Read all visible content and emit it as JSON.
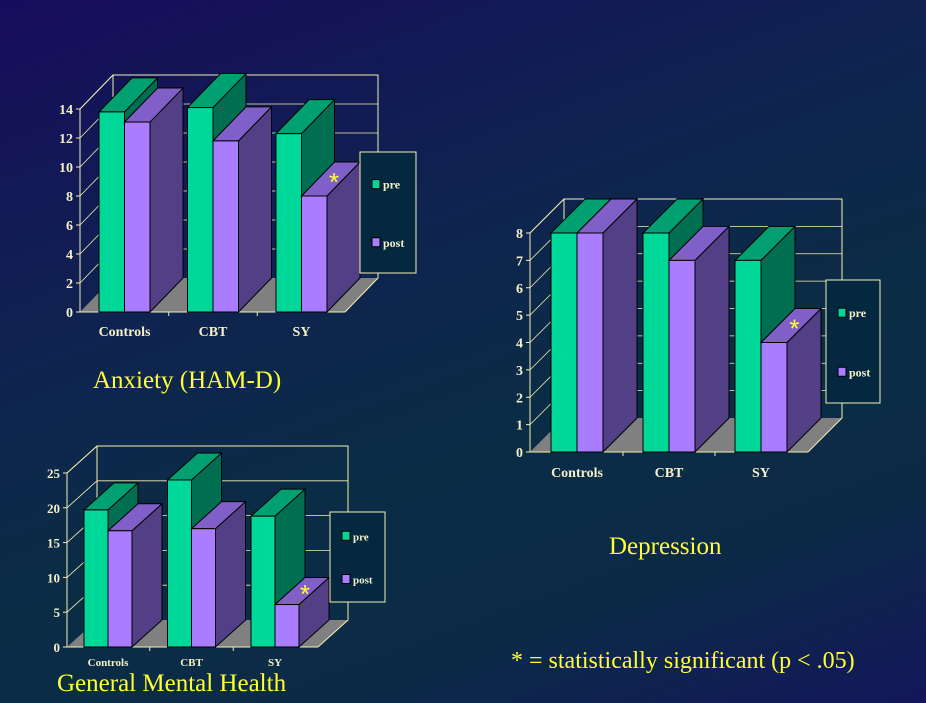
{
  "footnote": "* = statistically significant (p < .05)",
  "colors": {
    "pre": "#00d89a",
    "post": "#aa7cff",
    "title": "#ffff33",
    "axis": "#f5f0b0",
    "floor": "#808080"
  },
  "chart_data": [
    {
      "type": "bar",
      "style": "3d-clustered",
      "title": "Anxiety (HAM-D)",
      "categories": [
        "Controls",
        "CBT",
        "SY"
      ],
      "series": [
        {
          "name": "pre",
          "values": [
            13.8,
            14.1,
            12.3
          ]
        },
        {
          "name": "post",
          "values": [
            13.1,
            11.8,
            8.0
          ]
        }
      ],
      "yticks": [
        0,
        2,
        4,
        6,
        8,
        10,
        12,
        14
      ],
      "ylim": [
        0,
        14
      ],
      "grid": true,
      "legend": "right",
      "annotations": [
        {
          "text": "*",
          "category": "SY",
          "series": "post"
        }
      ]
    },
    {
      "type": "bar",
      "style": "3d-clustered",
      "title": "Depression",
      "categories": [
        "Controls",
        "CBT",
        "SY"
      ],
      "series": [
        {
          "name": "pre",
          "values": [
            8.0,
            8.0,
            7.0
          ]
        },
        {
          "name": "post",
          "values": [
            8.0,
            7.0,
            4.0
          ]
        }
      ],
      "yticks": [
        0,
        1,
        2,
        3,
        4,
        5,
        6,
        7,
        8
      ],
      "ylim": [
        0,
        8
      ],
      "grid": true,
      "legend": "right",
      "annotations": [
        {
          "text": "*",
          "category": "SY",
          "series": "post"
        }
      ]
    },
    {
      "type": "bar",
      "style": "3d-clustered",
      "title": "General Mental Health",
      "categories": [
        "Controls",
        "CBT",
        "SY"
      ],
      "series": [
        {
          "name": "pre",
          "values": [
            19.7,
            24.0,
            18.8
          ]
        },
        {
          "name": "post",
          "values": [
            16.7,
            17.0,
            6.1
          ]
        }
      ],
      "yticks": [
        0,
        5,
        10,
        15,
        20,
        25
      ],
      "ylim": [
        0,
        25
      ],
      "grid": true,
      "legend": "right",
      "annotations": [
        {
          "text": "*",
          "category": "SY",
          "series": "post"
        }
      ]
    }
  ]
}
